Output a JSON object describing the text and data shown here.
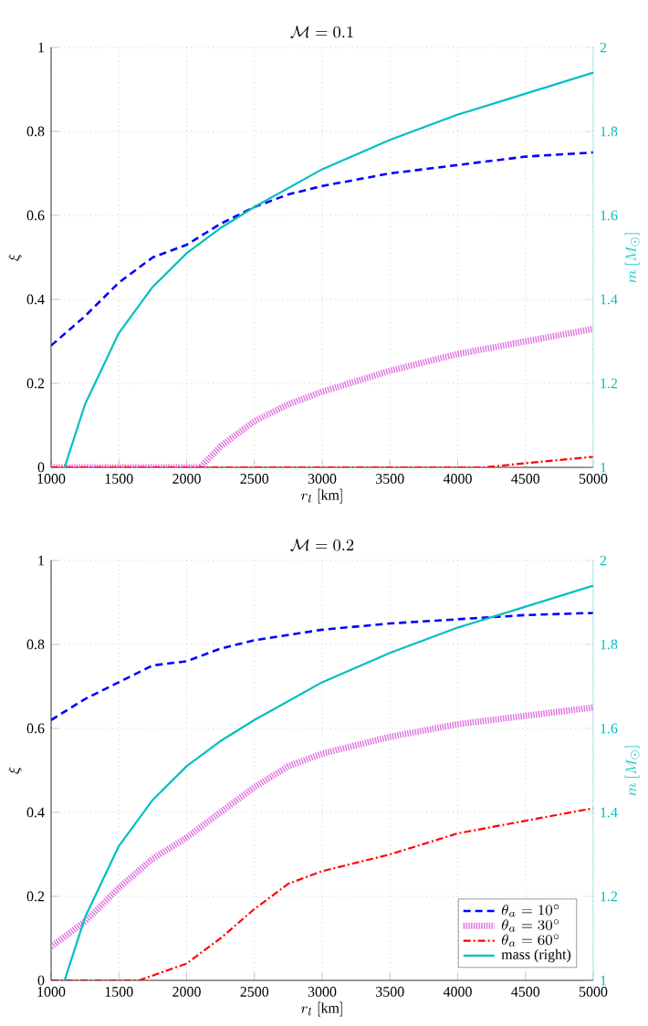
{
  "chart_data": [
    {
      "type": "line",
      "title": "\\mathcal{M} = 0.1",
      "xlabel": "r_l\\ [\\mathrm{km}]",
      "ylabel": "\\xi",
      "y2label": "m\\ [M_{\\odot}]",
      "xlim": [
        1000,
        5000
      ],
      "xticks": [
        1000,
        1500,
        2000,
        2500,
        3000,
        3500,
        4000,
        4500,
        5000
      ],
      "ylim": [
        0,
        1
      ],
      "yticks": [
        0,
        0.2,
        0.4,
        0.6,
        0.8,
        1
      ],
      "y2lim": [
        1,
        2
      ],
      "y2ticks": [
        1,
        1.2,
        1.4,
        1.6,
        1.8,
        2
      ],
      "grid": true,
      "marker": "none",
      "series": [
        {
          "color": "#0000ff",
          "line_style": "dashed",
          "x": [
            1000,
            1250,
            1500,
            1750,
            2000,
            2250,
            2500,
            2750,
            3000,
            3500,
            4000,
            4500,
            5000
          ],
          "values": [
            0.29,
            0.36,
            0.44,
            0.5,
            0.53,
            0.58,
            0.62,
            0.65,
            0.67,
            0.7,
            0.72,
            0.74,
            0.75
          ]
        },
        {
          "color": "#e070e0",
          "line_style": "dotted",
          "x": [
            1000,
            1500,
            2100,
            2250,
            2500,
            2750,
            3000,
            3500,
            4000,
            4500,
            5000
          ],
          "values": [
            0,
            0,
            0,
            0.05,
            0.11,
            0.15,
            0.18,
            0.23,
            0.27,
            0.3,
            0.33
          ]
        },
        {
          "color": "#ff0000",
          "line_style": "dashdot",
          "x": [
            1000,
            2000,
            3000,
            4200,
            4500,
            5000
          ],
          "values": [
            0,
            0,
            0,
            0,
            0.01,
            0.025
          ]
        },
        {
          "color": "#00bfbf",
          "line_style": "solid",
          "axis": "y2",
          "x": [
            1100,
            1250,
            1500,
            1750,
            2000,
            2250,
            2500,
            3000,
            3500,
            4000,
            4500,
            5000
          ],
          "values": [
            1.0,
            1.15,
            1.32,
            1.43,
            1.51,
            1.57,
            1.62,
            1.71,
            1.78,
            1.84,
            1.89,
            1.94
          ]
        }
      ]
    },
    {
      "type": "line",
      "title": "\\mathcal{M} = 0.2",
      "xlabel": "r_l\\ [\\mathrm{km}]",
      "ylabel": "\\xi",
      "y2label": "m\\ [M_{\\odot}]",
      "xlim": [
        1000,
        5000
      ],
      "xticks": [
        1000,
        1500,
        2000,
        2500,
        3000,
        3500,
        4000,
        4500,
        5000
      ],
      "ylim": [
        0,
        1
      ],
      "yticks": [
        0,
        0.2,
        0.4,
        0.6,
        0.8,
        1
      ],
      "y2lim": [
        1,
        2
      ],
      "y2ticks": [
        1,
        1.2,
        1.4,
        1.6,
        1.8,
        2
      ],
      "grid": true,
      "marker": "none",
      "legend": "bottom right",
      "series": [
        {
          "name": "\\theta_a = 10^\\circ",
          "color": "#0000ff",
          "line_style": "dashed",
          "x": [
            1000,
            1250,
            1500,
            1750,
            2000,
            2250,
            2500,
            3000,
            3500,
            4000,
            4500,
            5000
          ],
          "values": [
            0.62,
            0.67,
            0.71,
            0.75,
            0.76,
            0.79,
            0.81,
            0.835,
            0.85,
            0.86,
            0.87,
            0.875
          ]
        },
        {
          "name": "\\theta_a = 30^\\circ",
          "color": "#e070e0",
          "line_style": "dotted",
          "x": [
            1000,
            1250,
            1500,
            1750,
            2000,
            2250,
            2500,
            2750,
            3000,
            3500,
            4000,
            4500,
            5000
          ],
          "values": [
            0.08,
            0.14,
            0.22,
            0.29,
            0.34,
            0.4,
            0.46,
            0.51,
            0.54,
            0.58,
            0.61,
            0.63,
            0.65
          ]
        },
        {
          "name": "\\theta_a = 60^\\circ",
          "color": "#ff0000",
          "line_style": "dashdot",
          "x": [
            1000,
            1650,
            2000,
            2250,
            2500,
            2750,
            3000,
            3500,
            4000,
            4500,
            5000
          ],
          "values": [
            0,
            0,
            0.04,
            0.1,
            0.17,
            0.23,
            0.26,
            0.3,
            0.35,
            0.38,
            0.41
          ]
        },
        {
          "name": "\\mbox{mass (right)}",
          "color": "#00bfbf",
          "line_style": "solid",
          "axis": "y2",
          "x": [
            1100,
            1250,
            1500,
            1750,
            2000,
            2250,
            2500,
            3000,
            3500,
            4000,
            4500,
            5000
          ],
          "values": [
            1.0,
            1.15,
            1.32,
            1.43,
            1.51,
            1.57,
            1.62,
            1.71,
            1.78,
            1.84,
            1.89,
            1.94
          ]
        }
      ]
    }
  ]
}
